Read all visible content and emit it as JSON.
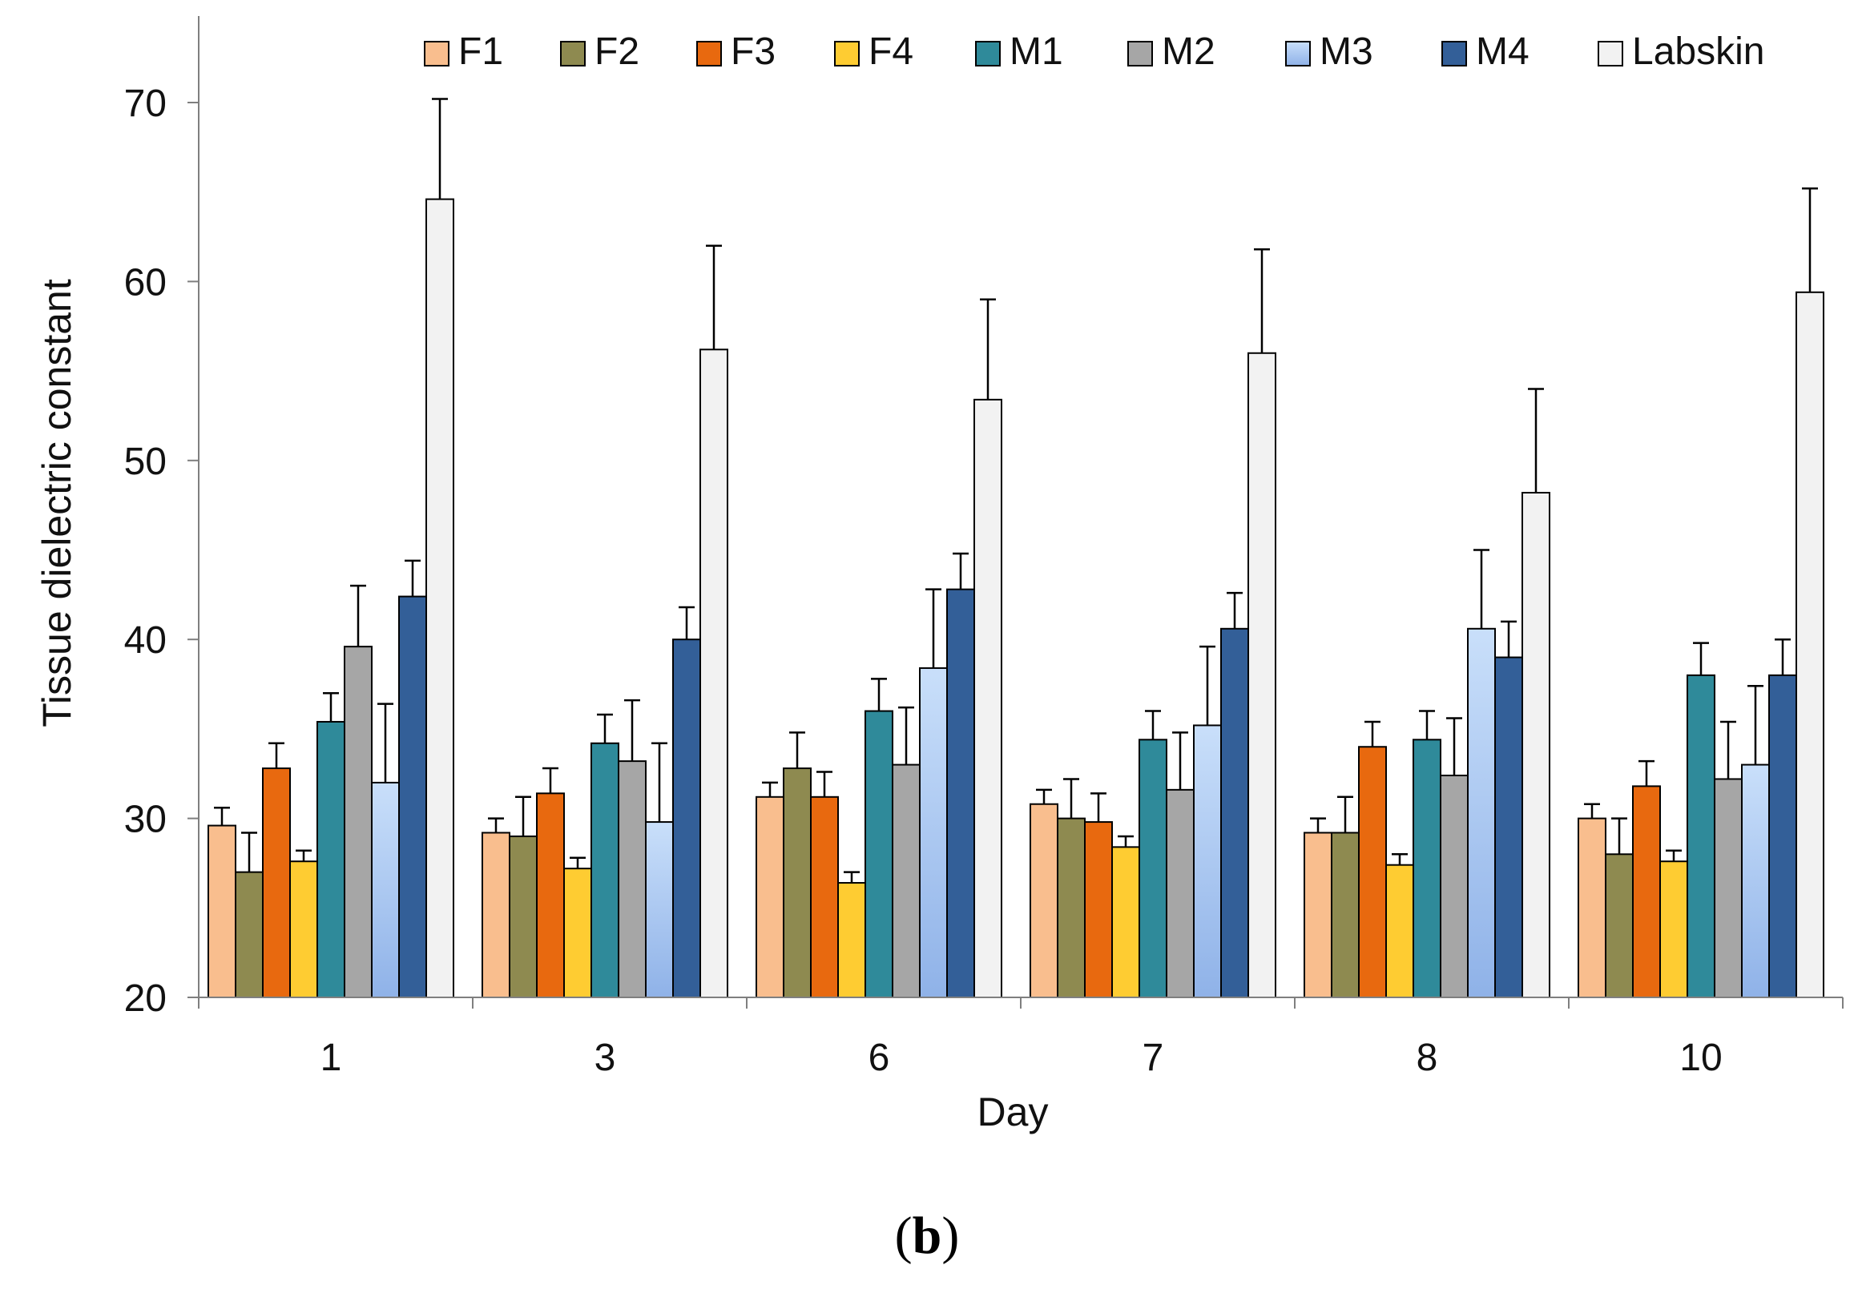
{
  "chart_data": {
    "type": "bar",
    "title": "",
    "xlabel": "Day",
    "ylabel": "Tissue dielectric constant",
    "ylim": [
      20,
      75
    ],
    "yticks": [
      20,
      30,
      40,
      50,
      60,
      70
    ],
    "categories": [
      "1",
      "3",
      "6",
      "7",
      "8",
      "10"
    ],
    "legend_position": "top",
    "series": [
      {
        "name": "F1",
        "color": "#F9BE8E",
        "values": [
          29.6,
          29.2,
          31.2,
          30.8,
          29.2,
          30.0
        ],
        "errors": [
          1.0,
          0.8,
          0.8,
          0.8,
          0.8,
          0.8
        ]
      },
      {
        "name": "F2",
        "color": "#8E8A50",
        "values": [
          27.0,
          29.0,
          32.8,
          30.0,
          29.2,
          28.0
        ],
        "errors": [
          2.2,
          2.2,
          2.0,
          2.2,
          2.0,
          2.0
        ]
      },
      {
        "name": "F3",
        "color": "#E8690F",
        "values": [
          32.8,
          31.4,
          31.2,
          29.8,
          34.0,
          31.8
        ],
        "errors": [
          1.4,
          1.4,
          1.4,
          1.6,
          1.4,
          1.4
        ]
      },
      {
        "name": "F4",
        "color": "#FECC32",
        "values": [
          27.6,
          27.2,
          26.4,
          28.4,
          27.4,
          27.6
        ],
        "errors": [
          0.6,
          0.6,
          0.6,
          0.6,
          0.6,
          0.6
        ]
      },
      {
        "name": "M1",
        "color": "#2F8A9A",
        "values": [
          35.4,
          34.2,
          36.0,
          34.4,
          34.4,
          38.0
        ],
        "errors": [
          1.6,
          1.6,
          1.8,
          1.6,
          1.6,
          1.8
        ]
      },
      {
        "name": "M2",
        "color": "#A6A6A6",
        "values": [
          39.6,
          33.2,
          33.0,
          31.6,
          32.4,
          32.2
        ],
        "errors": [
          3.4,
          3.4,
          3.2,
          3.2,
          3.2,
          3.2
        ]
      },
      {
        "name": "M3",
        "color": "#A9C9F4",
        "values": [
          32.0,
          29.8,
          38.4,
          35.2,
          40.6,
          33.0
        ],
        "errors": [
          4.4,
          4.4,
          4.4,
          4.4,
          4.4,
          4.4
        ]
      },
      {
        "name": "M4",
        "color": "#335F98",
        "values": [
          42.4,
          40.0,
          42.8,
          40.6,
          39.0,
          38.0
        ],
        "errors": [
          2.0,
          1.8,
          2.0,
          2.0,
          2.0,
          2.0
        ]
      },
      {
        "name": "Labskin",
        "color": "#F2F2F2",
        "values": [
          64.6,
          56.2,
          53.4,
          56.0,
          48.2,
          59.4
        ],
        "errors": [
          5.6,
          5.8,
          5.6,
          5.8,
          5.8,
          5.8
        ]
      }
    ]
  },
  "caption": {
    "open": "(",
    "letter": "b",
    "close": ")"
  }
}
